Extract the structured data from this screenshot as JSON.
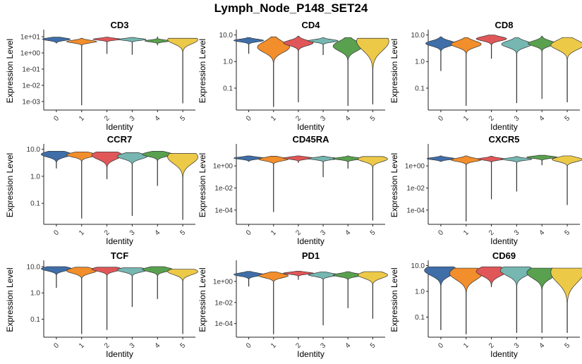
{
  "title": "Lymph_Node_P148_SET24",
  "chart_data": {
    "type": "violin",
    "title": "Lymph_Node_P148_SET24",
    "xlabel": "Identity",
    "ylabel": "Expression Level",
    "categories": [
      "0",
      "1",
      "2",
      "3",
      "4",
      "5"
    ],
    "colors": [
      "#3F6EA8",
      "#F28E2B",
      "#E15759",
      "#76B7B2",
      "#59A14F",
      "#EDC948"
    ],
    "panels": [
      {
        "name": "CD3",
        "scale": "log10",
        "ylim": [
          0.0004,
          15
        ],
        "yticks": [
          0.001,
          0.01,
          0.1,
          1,
          10
        ],
        "ytick_labels": [
          "1e-03",
          "1e-02",
          "1e-01",
          "1e+00",
          "1e+01"
        ],
        "violins": [
          {
            "min": 4.0,
            "max": 9.5,
            "mode": 7.0,
            "spread": 0.08,
            "width": 0.55
          },
          {
            "min": 0.0006,
            "max": 8.0,
            "mode": 5.0,
            "spread": 0.08,
            "width": 0.6
          },
          {
            "min": 0.9,
            "max": 9.5,
            "mode": 7.0,
            "spread": 0.06,
            "width": 0.55
          },
          {
            "min": 0.8,
            "max": 9.0,
            "mode": 6.8,
            "spread": 0.06,
            "width": 0.55
          },
          {
            "min": 3.0,
            "max": 10.0,
            "mode": 5.5,
            "spread": 0.06,
            "width": 0.5
          },
          {
            "min": 0.0008,
            "max": 8.0,
            "mode": 6.5,
            "spread": 0.25,
            "width": 0.6
          }
        ]
      },
      {
        "name": "CD4",
        "scale": "log10",
        "ylim": [
          0.018,
          11
        ],
        "yticks": [
          0.1,
          1,
          10
        ],
        "ytick_labels": [
          "0.1",
          "1.0",
          "10.0"
        ],
        "violins": [
          {
            "min": 2.0,
            "max": 8.0,
            "mode": 6.2,
            "spread": 0.05,
            "width": 0.6
          },
          {
            "min": 0.02,
            "max": 8.5,
            "mode": 3.5,
            "spread": 0.2,
            "width": 0.65
          },
          {
            "min": 0.03,
            "max": 9.0,
            "mode": 5.0,
            "spread": 0.1,
            "width": 0.6
          },
          {
            "min": 1.8,
            "max": 8.0,
            "mode": 6.0,
            "spread": 0.05,
            "width": 0.6
          },
          {
            "min": 0.022,
            "max": 8.0,
            "mode": 3.8,
            "spread": 0.18,
            "width": 0.6
          },
          {
            "min": 0.025,
            "max": 7.5,
            "mode": 5.8,
            "spread": 0.35,
            "width": 0.65
          }
        ]
      },
      {
        "name": "CD8",
        "scale": "log10",
        "ylim": [
          0.018,
          11
        ],
        "yticks": [
          0.1,
          1,
          10
        ],
        "ytick_labels": [
          "0.1",
          "1.0",
          "10.0"
        ],
        "violins": [
          {
            "min": 0.45,
            "max": 8.5,
            "mode": 4.8,
            "spread": 0.1,
            "width": 0.6
          },
          {
            "min": 0.022,
            "max": 8.0,
            "mode": 4.5,
            "spread": 0.12,
            "width": 0.6
          },
          {
            "min": 1.3,
            "max": 10.0,
            "mode": 7.2,
            "spread": 0.08,
            "width": 0.6
          },
          {
            "min": 0.028,
            "max": 8.0,
            "mode": 4.5,
            "spread": 0.12,
            "width": 0.6
          },
          {
            "min": 0.04,
            "max": 9.0,
            "mode": 4.8,
            "spread": 0.1,
            "width": 0.55
          },
          {
            "min": 0.03,
            "max": 8.0,
            "mode": 4.2,
            "spread": 0.18,
            "width": 0.65
          }
        ]
      },
      {
        "name": "CCR7",
        "scale": "log10",
        "ylim": [
          0.02,
          11
        ],
        "yticks": [
          0.1,
          1,
          10
        ],
        "ytick_labels": [
          "0.1",
          "1.0",
          "10.0"
        ],
        "violins": [
          {
            "min": 2.0,
            "max": 8.5,
            "mode": 6.5,
            "spread": 0.1,
            "width": 0.6
          },
          {
            "min": 0.028,
            "max": 8.0,
            "mode": 6.2,
            "spread": 0.08,
            "width": 0.6
          },
          {
            "min": 0.8,
            "max": 8.0,
            "mode": 6.0,
            "spread": 0.15,
            "width": 0.6
          },
          {
            "min": 0.035,
            "max": 7.5,
            "mode": 5.5,
            "spread": 0.1,
            "width": 0.6
          },
          {
            "min": 0.45,
            "max": 8.5,
            "mode": 6.5,
            "spread": 0.08,
            "width": 0.6
          },
          {
            "min": 0.025,
            "max": 7.0,
            "mode": 5.2,
            "spread": 0.25,
            "width": 0.6
          }
        ]
      },
      {
        "name": "CD45RA",
        "scale": "log10",
        "ylim": [
          8e-06,
          40
        ],
        "yticks": [
          0.0001,
          0.01,
          1
        ],
        "ytick_labels": [
          "1e-04",
          "1e-02",
          "1e+00"
        ],
        "violins": [
          {
            "min": 2.5,
            "max": 8.0,
            "mode": 5.0,
            "spread": 0.1,
            "width": 0.6
          },
          {
            "min": 7e-05,
            "max": 7.5,
            "mode": 4.0,
            "spread": 0.15,
            "width": 0.6
          },
          {
            "min": 2.0,
            "max": 8.0,
            "mode": 5.0,
            "spread": 0.1,
            "width": 0.6
          },
          {
            "min": 0.1,
            "max": 7.5,
            "mode": 4.5,
            "spread": 0.1,
            "width": 0.6
          },
          {
            "min": 0.6,
            "max": 8.0,
            "mode": 4.5,
            "spread": 0.1,
            "width": 0.6
          },
          {
            "min": 1.2e-05,
            "max": 7.0,
            "mode": 4.2,
            "spread": 0.25,
            "width": 0.6
          }
        ]
      },
      {
        "name": "CXCR5",
        "scale": "log10",
        "ylim": [
          8e-06,
          40
        ],
        "yticks": [
          0.0001,
          0.01,
          1
        ],
        "ytick_labels": [
          "1e-04",
          "1e-02",
          "1e+00"
        ],
        "violins": [
          {
            "min": 2.5,
            "max": 8.0,
            "mode": 4.5,
            "spread": 0.1,
            "width": 0.55
          },
          {
            "min": 1e-05,
            "max": 8.0,
            "mode": 3.5,
            "spread": 0.15,
            "width": 0.6
          },
          {
            "min": 0.001,
            "max": 7.5,
            "mode": 4.2,
            "spread": 0.1,
            "width": 0.55
          },
          {
            "min": 0.005,
            "max": 7.0,
            "mode": 4.0,
            "spread": 0.1,
            "width": 0.6
          },
          {
            "min": 1.2,
            "max": 9.0,
            "mode": 6.0,
            "spread": 0.1,
            "width": 0.6
          },
          {
            "min": 0.0003,
            "max": 8.0,
            "mode": 3.8,
            "spread": 0.2,
            "width": 0.6
          }
        ]
      },
      {
        "name": "TCF",
        "scale": "log10",
        "ylim": [
          0.025,
          12
        ],
        "yticks": [
          0.1,
          1,
          10
        ],
        "ytick_labels": [
          "0.1",
          "1.0",
          "10.0"
        ],
        "violins": [
          {
            "min": 1.6,
            "max": 10.0,
            "mode": 8.3,
            "spread": 0.08,
            "width": 0.6
          },
          {
            "min": 0.028,
            "max": 9.5,
            "mode": 7.0,
            "spread": 0.1,
            "width": 0.6
          },
          {
            "min": 0.04,
            "max": 9.5,
            "mode": 8.0,
            "spread": 0.08,
            "width": 0.6
          },
          {
            "min": 0.3,
            "max": 9.0,
            "mode": 7.5,
            "spread": 0.08,
            "width": 0.6
          },
          {
            "min": 0.6,
            "max": 10.0,
            "mode": 7.8,
            "spread": 0.08,
            "width": 0.6
          },
          {
            "min": 0.028,
            "max": 8.0,
            "mode": 6.5,
            "spread": 0.12,
            "width": 0.6
          }
        ]
      },
      {
        "name": "PD1",
        "scale": "log10",
        "ylim": [
          8e-06,
          40
        ],
        "yticks": [
          0.0001,
          0.01,
          1
        ],
        "ytick_labels": [
          "1e-04",
          "1e-02",
          "1e+00"
        ],
        "violins": [
          {
            "min": 0.35,
            "max": 9.0,
            "mode": 4.5,
            "spread": 0.15,
            "width": 0.6
          },
          {
            "min": 1e-05,
            "max": 8.0,
            "mode": 3.5,
            "spread": 0.2,
            "width": 0.6
          },
          {
            "min": 1.5,
            "max": 9.5,
            "mode": 6.0,
            "spread": 0.1,
            "width": 0.6
          },
          {
            "min": 7e-05,
            "max": 8.0,
            "mode": 4.2,
            "spread": 0.15,
            "width": 0.6
          },
          {
            "min": 0.003,
            "max": 8.5,
            "mode": 4.0,
            "spread": 0.15,
            "width": 0.6
          },
          {
            "min": 0.0003,
            "max": 8.5,
            "mode": 4.0,
            "spread": 0.3,
            "width": 0.6
          }
        ]
      },
      {
        "name": "CD69",
        "scale": "log10",
        "ylim": [
          0.02,
          11
        ],
        "yticks": [
          0.1,
          1,
          10
        ],
        "ytick_labels": [
          "0.1",
          "1.0",
          "10.0"
        ],
        "violins": [
          {
            "min": 0.032,
            "max": 9.0,
            "mode": 6.5,
            "spread": 0.2,
            "width": 0.65
          },
          {
            "min": 0.022,
            "max": 8.0,
            "mode": 5.0,
            "spread": 0.25,
            "width": 0.65
          },
          {
            "min": 1.5,
            "max": 9.0,
            "mode": 6.0,
            "spread": 0.18,
            "width": 0.6
          },
          {
            "min": 0.025,
            "max": 9.0,
            "mode": 6.5,
            "spread": 0.2,
            "width": 0.65
          },
          {
            "min": 0.025,
            "max": 8.0,
            "mode": 5.3,
            "spread": 0.22,
            "width": 0.6
          },
          {
            "min": 0.025,
            "max": 8.0,
            "mode": 5.5,
            "spread": 0.4,
            "width": 0.65
          }
        ]
      }
    ]
  }
}
